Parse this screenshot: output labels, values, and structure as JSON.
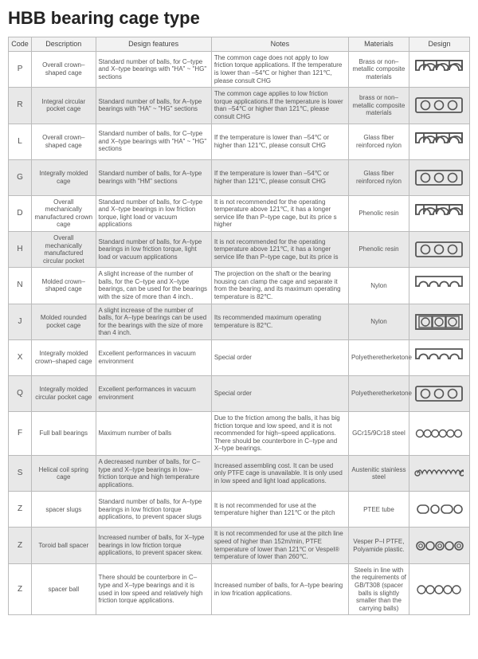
{
  "title": "HBB bearing cage type",
  "columns": [
    "Code",
    "Description",
    "Design features",
    "Notes",
    "Materials",
    "Design"
  ],
  "row_bg_alt": "#e8e8e8",
  "border_color": "#bbbbbb",
  "text_color": "#555555",
  "rows": [
    {
      "code": "P",
      "desc": "Overall crown–shaped cage",
      "feat": "Standard number of balls, for C–type and X–type bearings with \"HA\" ~ \"HG\" sections",
      "notes": "The common cage does not apply to low friction torque applications. If the temperature is lower than –54℃ or higher than 121℃, please consult CHG",
      "mat": "Brass or non–metallic composite materials",
      "alt": false,
      "design": "crown"
    },
    {
      "code": "R",
      "desc": "Integral circular pocket cage",
      "feat": "Standard number of balls, for A–type bearings with \"HA\" ~ \"HG\" sections",
      "notes": "The common cage applies to low friction torque applications.If the temperature is lower than –54℃ or higher than 121℃, please consult CHG",
      "mat": "brass or non–metallic composite materials",
      "alt": true,
      "design": "rect3"
    },
    {
      "code": "L",
      "desc": "Overall crown–shaped cage",
      "feat": "Standard number of balls, for C–type and X–type bearings with \"HA\" ~ \"HG\" sections",
      "notes": "If the temperature is lower than –54℃ or higher than 121℃, please consult CHG",
      "mat": "Glass fiber reinforced nylon",
      "alt": false,
      "design": "crown"
    },
    {
      "code": "G",
      "desc": "Integrally molded cage",
      "feat": "Standard number of balls, for A–type bearings with \"HM\" sections",
      "notes": "If the temperature is lower than –54℃ or higher than 121℃, please consult CHG",
      "mat": "Glass fiber reinforced nylon",
      "alt": true,
      "design": "rect3"
    },
    {
      "code": "D",
      "desc": "Overall mechanically manufactured crown cage",
      "feat": "Standard number of balls, for C–type and X–type bearings in low friction torque, light load or vacuum applications",
      "notes": "It is not recommended for the operating temperature above 121℃, it has a longer service life than P–type cage, but its price s higher",
      "mat": "Phenolic resin",
      "alt": false,
      "design": "crown"
    },
    {
      "code": "H",
      "desc": "Overall mechanically manufactured circular pocket",
      "feat": "Standard number of balls, for A–type bearings in low friction torque, light load or vacuum applications",
      "notes": "It is not recommended for the operating temperature above 121℃, it has a longer service life than P–type cage, but its price is",
      "mat": "Phenolic resin",
      "alt": true,
      "design": "rect3"
    },
    {
      "code": "N",
      "desc": "Molded crown–shaped cage",
      "feat": "A slight increase of the number of balls, for the C–type and X–type bearings, can be used for the bearings with the size of more than 4 inch..",
      "notes": "The projection on the shaft or the bearing housing can clamp the cage and separate it from the bearing, and its maximum operating temperature is 82℃.",
      "mat": "Nylon",
      "alt": false,
      "design": "crown4"
    },
    {
      "code": "J",
      "desc": "Molded rounded pocket cage",
      "feat": "A slight increase of the number of balls, for A–type bearings can be used for the bearings with the size of more than 4 inch.",
      "notes": "Its recommended maximum operating temperature is 82℃.",
      "mat": "Nylon",
      "alt": true,
      "design": "rect3sq"
    },
    {
      "code": "X",
      "desc": "Integrally molded crown–shaped cage",
      "feat": "Excellent performances in vacuum environment",
      "notes": "Special order",
      "mat": "Polyetheretherketone",
      "alt": false,
      "design": "crown4"
    },
    {
      "code": "Q",
      "desc": "Integrally molded circular pocket cage",
      "feat": "Excellent performances in vacuum environment",
      "notes": "Special order",
      "mat": "Polyetheretherketone",
      "alt": true,
      "design": "rect3"
    },
    {
      "code": "F",
      "desc": "Full ball bearings",
      "feat": "Maximum number of balls",
      "notes": "Due to the friction among the balls, it has big friction torque and low speed, and it is not recommended for high–speed applications. There should be counterbore in C–type and X–type bearings.",
      "mat": "GCr15/9Cr18 steel",
      "alt": false,
      "design": "circles6"
    },
    {
      "code": "S",
      "desc": "Helical coil spring cage",
      "feat": "A decreased number of balls, for C–type and X–type bearings in low–friction torque and high temperature applications.",
      "notes": "Increased assembling cost. It can be used only PTFE cage is unavailable. It is only used in low speed and light load applications.",
      "mat": "Austenitic stainless steel",
      "alt": true,
      "design": "spring"
    },
    {
      "code": "Z",
      "desc": "spacer slugs",
      "feat": "Standard number of balls, for A–type bearings in low friction torque applications, to prevent spacer slugs",
      "notes": "It is not recommended for use at the temperature higher than 121℃ or the pitch",
      "mat": "PTEE tube",
      "alt": false,
      "design": "slugs"
    },
    {
      "code": "Z",
      "desc": "Toroid ball spacer",
      "feat": "Increased number of balls, for X–type bearings in low friction torque applications, to prevent spacer skew.",
      "notes": "It is not recommended for use at the pitch line speed of higher than 152m/min, PTFE temperature of lower than 121℃ or Vespel® temperature of lower than 260℃.",
      "mat": "Vesper P–I PTFE, Polyamide plastic.",
      "alt": true,
      "design": "toroid"
    },
    {
      "code": "Z",
      "desc": "spacer ball",
      "feat": "There should be counterbore in C–type and X–type bearings and it is used in low speed and relatively high friction torque applications.",
      "notes": "Increased number of balls, for A–type bearing in low frication applications.",
      "mat": "Steels in line with the requirements of GB/T308 (spacer balls is slightly smaller than the carrying balls)",
      "alt": false,
      "design": "circles5"
    }
  ]
}
